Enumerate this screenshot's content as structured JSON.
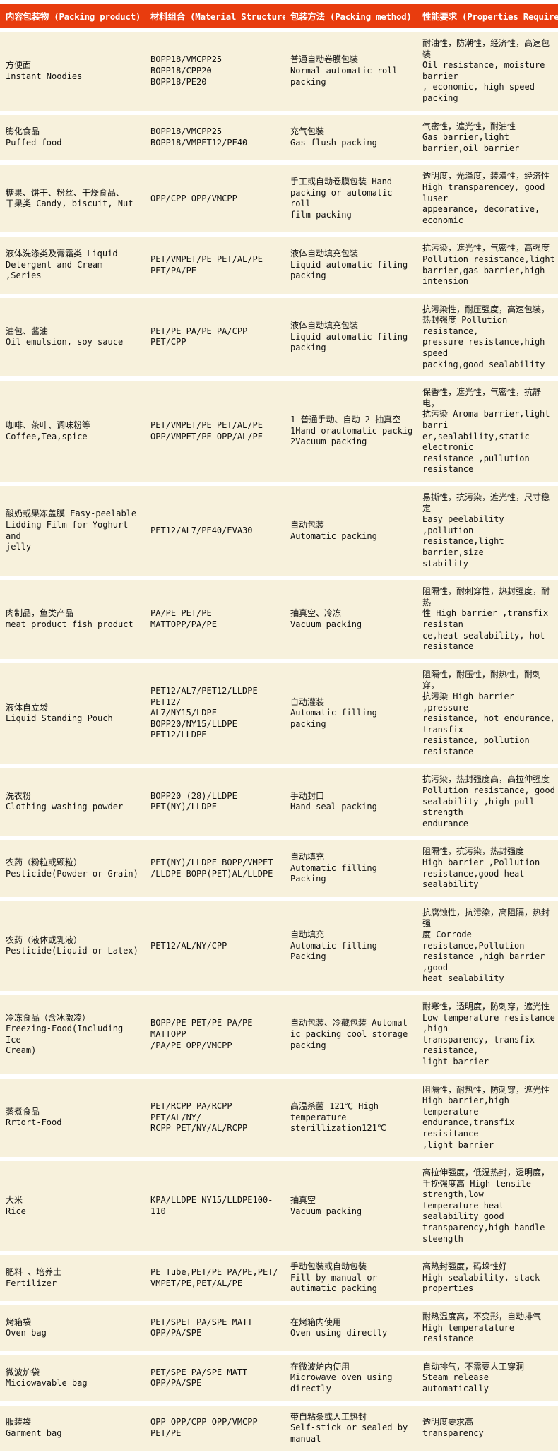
{
  "colors": {
    "header_bg": "#e83c0e",
    "row_bg": "#f7f1dc",
    "header_text": "#ffffff"
  },
  "header": {
    "product": "内容包装物 (Packing product)",
    "material": "材料组合 (Material Structure)",
    "method": "包装方法 (Packing  method)",
    "properties": "性能要求 (Properties Required)"
  },
  "rows": [
    {
      "product": "方便面\nInstant Noodies",
      "material": "BOPP18/VMCPP25  BOPP18/CPP20\nBOPP18/PE20",
      "method": "普通自动卷膜包装\nNormal automatic roll\npacking",
      "properties": "耐油性，防潮性，经济性，高速包装\nOil resistance, moisture barrier\n, economic, high speed packing"
    },
    {
      "product": "膨化食品\nPuffed food",
      "material": "BOPP18/VMCPP25\nBOPP18/VMPET12/PE40",
      "method": "充气包装\nGas flush packing",
      "properties": "气密性，遮光性，耐油性\nGas barrier,light barrier,oil barrier"
    },
    {
      "product": "糖果、饼干、粉丝、干燥食品、\n干果类 Candy, biscuit, Nut",
      "material": "OPP/CPP OPP/VMCPP",
      "method": "手工或自动卷膜包装 Hand\npacking or automatic roll\n film packing",
      "properties": "透明度，光泽度，装潢性，经济性\nHigh transparencey, good luser\nappearance, decorative, economic"
    },
    {
      "product": "液体洗涤类及膏霜类 Liquid\nDetergent and Cream ,Series",
      "material": "PET/VMPET/PE PET/AL/PE\n PET/PA/PE",
      "method": "液体自动填充包装\nLiquid automatic filing\npacking",
      "properties": "抗污染，遮光性，气密性，高强度\nPollution resistance,light\nbarrier,gas barrier,high intension"
    },
    {
      "product": "油包、酱油\nOil emulsion, soy sauce",
      "material": "PET/PE  PA/PE PA/CPP PET/CPP",
      "method": "液体自动填充包装\nLiquid automatic filing\npacking",
      "properties": "抗污染性，耐压强度，高速包装，\n热封强度 Pollution resistance,\npressure resistance,high speed\npacking,good sealability"
    },
    {
      "product": "咖啡、茶叶、调味粉等\nCoffee,Tea,spice",
      "material": "PET/VMPET/PE PET/AL/PE\nOPP/VMPET/PE OPP/AL/PE",
      "method": "1 普通手动、自动 2 抽真空\n1Hand orautomatic packig\n  2Vacuum packing",
      "properties": "保香性，遮光性，气密性，抗静电，\n抗污染 Aroma barrier,light barri\ner,sealability,static electronic\nresistance ,pullution resistance"
    },
    {
      "product": "酸奶或果冻盖膜 Easy-peelable\nLidding Film for Yoghurt and\n jelly",
      "material": "PET12/AL7/PE40/EVA30",
      "method": "自动包装\nAutomatic packing",
      "properties": "易撕性，抗污染，遮光性，尺寸稳定\nEasy peelability ,pollution\nresistance,light barrier,size\nstability"
    },
    {
      "product": "肉制品，鱼类产品\nmeat product  fish product",
      "material": "PA/PE PET/PE MATTOPP/PA/PE",
      "method": "抽真空、冷冻\nVacuum packing",
      "properties": "阻隔性，耐刺穿性，热封强度，耐热\n性 High barrier ,transfix resistan\nce,heat sealability, hot resistance"
    },
    {
      "product": "液体自立袋\nLiquid Standing Pouch",
      "material": "PET12/AL7/PET12/LLDPE PET12/\nAL7/NY15/LDPE\nBOPP20/NY15/LLDPE  PET12/LLDPE",
      "method": "自动灌装\nAutomatic filling packing",
      "properties": "阻隔性，耐压性，耐热性，耐刺穿，\n抗污染 High barrier ,pressure\nresistance, hot endurance, transfix\nresistance, pollution resistance"
    },
    {
      "product": "洗衣粉\nClothing washing powder",
      "material": "BOPP20 (28)/LLDPE\nPET(NY)/LLDPE",
      "method": "手动封口\nHand seal packing",
      "properties": "抗污染，热封强度高，高拉伸强度\nPollution resistance, good\nsealability ,high pull strength\nendurance"
    },
    {
      "product": "农药（粉粒或颗粒）\nPesticide(Powder or Grain)",
      "material": "PET(NY)/LLDPE BOPP/VMPET\n/LLDPE BOPP(PET)AL/LLDPE",
      "method": "自动填充\nAutomatic filling Packing",
      "properties": "阻隔性，抗污染，热封强度\nHigh barrier ,Pollution\nresistance,good heat sealability"
    },
    {
      "product": "农药（液体或乳液）\nPesticide(Liquid or Latex)",
      "material": "PET12/AL/NY/CPP",
      "method": "自动填充\nAutomatic filling Packing",
      "properties": "抗腐蚀性，抗污染，高阻隔，热封强\n度 Corrode resistance,Pollution\nresistance ,high barrier ,good\nheat sealability"
    },
    {
      "product": "冷冻食品（含冰激凌）\nFreezing-Food(Including Ice\n Cream)",
      "material": "BOPP/PE PET/PE PA/PE MATTOPP\n/PA/PE OPP/VMCPP",
      "method": "自动包装、冷藏包装 Automat\nic packing  cool storage\n packing",
      "properties": "耐寒性，透明度，防刺穿，遮光性\nLow temperature resistance ,high\ntransparency, transfix resistance,\nlight barrier"
    },
    {
      "product": "蒸煮食品\nRrtort-Food",
      "material": "PET/RCPP PA/RCPP PET/AL/NY/\nRCPP PET/NY/AL/RCPP",
      "method": "高温杀菌 121℃ High\ntemperature\nsterillization121℃",
      "properties": "阻隔性，耐热性，防刺穿，遮光性\nHigh barrier,high temperature\nendurance,transfix resisitance\n,light barrier"
    },
    {
      "product": "大米\nRice",
      "material": "KPA/LLDPE NY15/LLDPE100-110",
      "method": "抽真空\nVacuum packing",
      "properties": "高拉伸强度，低温热封，透明度，\n手挽强度高 High tensile strength,low\ntemperature heat sealability good\ntransparency,high handle steength"
    },
    {
      "product": "肥料 、培养土\nFertilizer",
      "material": "PE Tube,PET/PE  PA/PE,PET/\nVMPET/PE,PET/AL/PE",
      "method": "手动包装或自动包装\nFill by manual or\nautimatic packing",
      "properties": "高热封强度，码垛性好\nHigh sealability, stack properties"
    },
    {
      "product": "烤箱袋\nOven bag",
      "material": "PET/SPET PA/SPE MATT OPP/PA/SPE",
      "method": "在烤箱内使用\nOven using directly",
      "properties": "耐热温度高，不变形，自动排气\nHigh temperatature resistance"
    },
    {
      "product": "微波炉袋\nMiciowavable bag",
      "material": "PET/SPE PA/SPE MATT OPP/PA/SPE",
      "method": "在微波炉内使用\nMicrowave oven using\ndirectly",
      "properties": "自动排气，不需要人工穿洞\nSteam release automatically"
    },
    {
      "product": "服装袋\nGarment bag",
      "material": "OPP  OPP/CPP OPP/VMCPP PET/PE",
      "method": "带自粘条或人工热封\nSelf-stick or sealed by\n manual",
      "properties": "透明度要求高\ntransparency"
    }
  ]
}
